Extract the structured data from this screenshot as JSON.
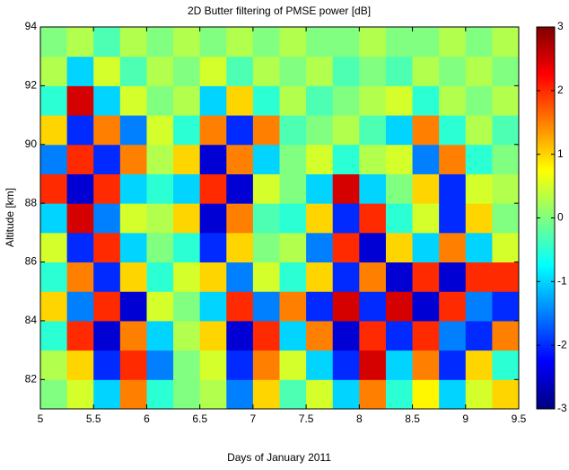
{
  "chart_data": {
    "type": "heatmap",
    "title": "2D Butter filtering of PMSE power [dB]",
    "xlabel": "Days of January 2011",
    "ylabel": "Altitude [km]",
    "colormap": "jet",
    "x": [
      5.125,
      5.375,
      5.625,
      5.875,
      6.125,
      6.375,
      6.625,
      6.875,
      7.125,
      7.375,
      7.625,
      7.875,
      8.125,
      8.375,
      8.625,
      8.875,
      9.125,
      9.375
    ],
    "y": [
      81.5,
      82.5,
      83.5,
      84.5,
      85.5,
      86.5,
      87.5,
      88.5,
      89.5,
      90.5,
      91.5,
      92.5,
      93.5
    ],
    "z": [
      [
        0,
        0.5,
        -1,
        1.5,
        -0.5,
        0,
        0.3,
        -1.5,
        1,
        -0.3,
        0.5,
        -1,
        1.5,
        -0.5,
        0.8,
        -1,
        0.5,
        1
      ],
      [
        0.3,
        1,
        -2,
        2,
        -1.5,
        0,
        0.5,
        -2,
        1.5,
        0.5,
        -1,
        -2,
        2.5,
        -1,
        1.5,
        -2,
        1,
        -0.5
      ],
      [
        -0.5,
        2,
        -2.5,
        1.5,
        -1,
        0.3,
        1,
        -2.5,
        2,
        -1,
        1.5,
        -2.5,
        2,
        -2,
        2,
        -1.5,
        -2,
        1.5
      ],
      [
        1,
        -1.5,
        2,
        -2.5,
        0.5,
        0,
        -1,
        2,
        -1.5,
        1.5,
        -2,
        2.5,
        -2,
        2.5,
        -2.5,
        2,
        -1.5,
        -2
      ],
      [
        -0.5,
        1.5,
        -2,
        1,
        -0.5,
        0.5,
        1,
        -1.5,
        0.5,
        -0.5,
        1,
        -2,
        1.5,
        -2.5,
        2,
        -2.5,
        2,
        2
      ],
      [
        0.5,
        -2,
        2,
        -1,
        0,
        -0.5,
        -2,
        1,
        0,
        0.3,
        -1.5,
        2,
        -2.5,
        1,
        -1,
        1.5,
        -1,
        0.5
      ],
      [
        -1,
        2.5,
        -1.5,
        0.5,
        0.3,
        1,
        -2.5,
        1.5,
        -0.3,
        -0.5,
        1,
        -2,
        2,
        -0.5,
        0.5,
        -2,
        1,
        0
      ],
      [
        2,
        -2.5,
        2,
        -1,
        -0.5,
        -1,
        2,
        -2.5,
        0.5,
        0,
        -1,
        2.5,
        -1,
        0,
        1,
        -2,
        0.5,
        0.3
      ],
      [
        -1.5,
        2,
        -2,
        1.5,
        0.3,
        1,
        -2.5,
        1.5,
        -1,
        0,
        0.5,
        -0.5,
        0.3,
        0.5,
        -1.5,
        1.5,
        -0.5,
        0
      ],
      [
        1,
        -2,
        1.5,
        -1.5,
        0.5,
        -0.5,
        1.5,
        -2,
        1.5,
        -0.3,
        0,
        0.3,
        -0.3,
        -1,
        1.5,
        -0.5,
        0.3,
        -0.3
      ],
      [
        -0.5,
        2.5,
        -1,
        0.5,
        0,
        0.3,
        -1,
        1,
        -0.5,
        0.3,
        -0.3,
        0,
        0.3,
        0.5,
        -0.5,
        0.3,
        0,
        0.3
      ],
      [
        0.3,
        -1,
        0.5,
        -0.3,
        0.3,
        0,
        0.5,
        -0.3,
        0.3,
        0,
        0.3,
        -0.3,
        0,
        -0.3,
        0.3,
        0,
        0.3,
        0
      ],
      [
        0,
        0.3,
        -0.3,
        0.3,
        0,
        0.3,
        0,
        0.3,
        0,
        0.3,
        0,
        0,
        0.3,
        0,
        0,
        0.3,
        0,
        0.3
      ]
    ],
    "xlim": [
      5,
      9.5
    ],
    "xticks": [
      5,
      5.5,
      6,
      6.5,
      7,
      7.5,
      8,
      8.5,
      9,
      9.5
    ],
    "ylim": [
      81,
      94
    ],
    "yticks": [
      82,
      84,
      86,
      88,
      90,
      92,
      94
    ],
    "clim": [
      -3,
      3
    ],
    "cticks": [
      -3,
      -2,
      -1,
      0,
      1,
      2,
      3
    ]
  }
}
